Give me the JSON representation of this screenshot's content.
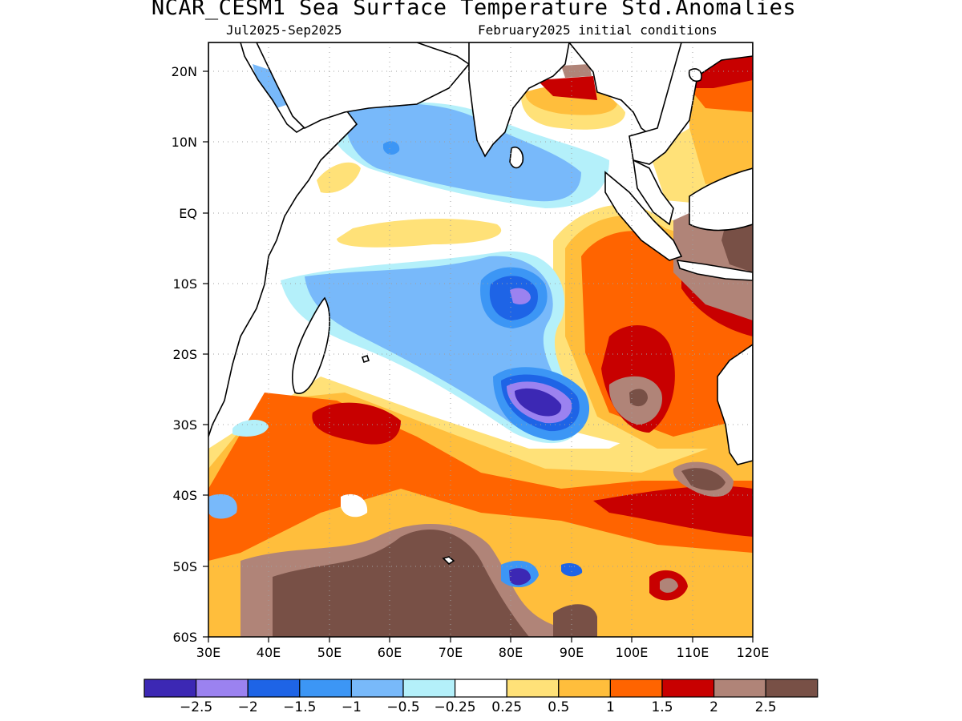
{
  "title": "NCAR_CESM1 Sea Surface Temperature Std.Anomalies",
  "subtitle_left": "Jul2025-Sep2025",
  "subtitle_right": "February2025 initial conditions",
  "map": {
    "lon_range": [
      30,
      120
    ],
    "lat_range": [
      -60,
      24
    ],
    "x_ticks": [
      "30E",
      "40E",
      "50E",
      "60E",
      "70E",
      "80E",
      "90E",
      "100E",
      "110E",
      "120E"
    ],
    "y_ticks": [
      "20N",
      "10N",
      "EQ",
      "10S",
      "20S",
      "30S",
      "40S",
      "50S",
      "60S"
    ],
    "grid": "dotted"
  },
  "colorbar": {
    "colors": [
      "#3c28b4",
      "#9b82f0",
      "#1e64e6",
      "#3c96f5",
      "#78b9fa",
      "#b4f0fa",
      "#ffffff",
      "#ffe178",
      "#ffbe3c",
      "#ff6400",
      "#c80000",
      "#b08478",
      "#785046"
    ],
    "labels": [
      "−2.5",
      "−2",
      "−1.5",
      "−1",
      "−0.5",
      "−0.25",
      "0.25",
      "0.5",
      "1",
      "1.5",
      "2",
      "2.5"
    ]
  }
}
